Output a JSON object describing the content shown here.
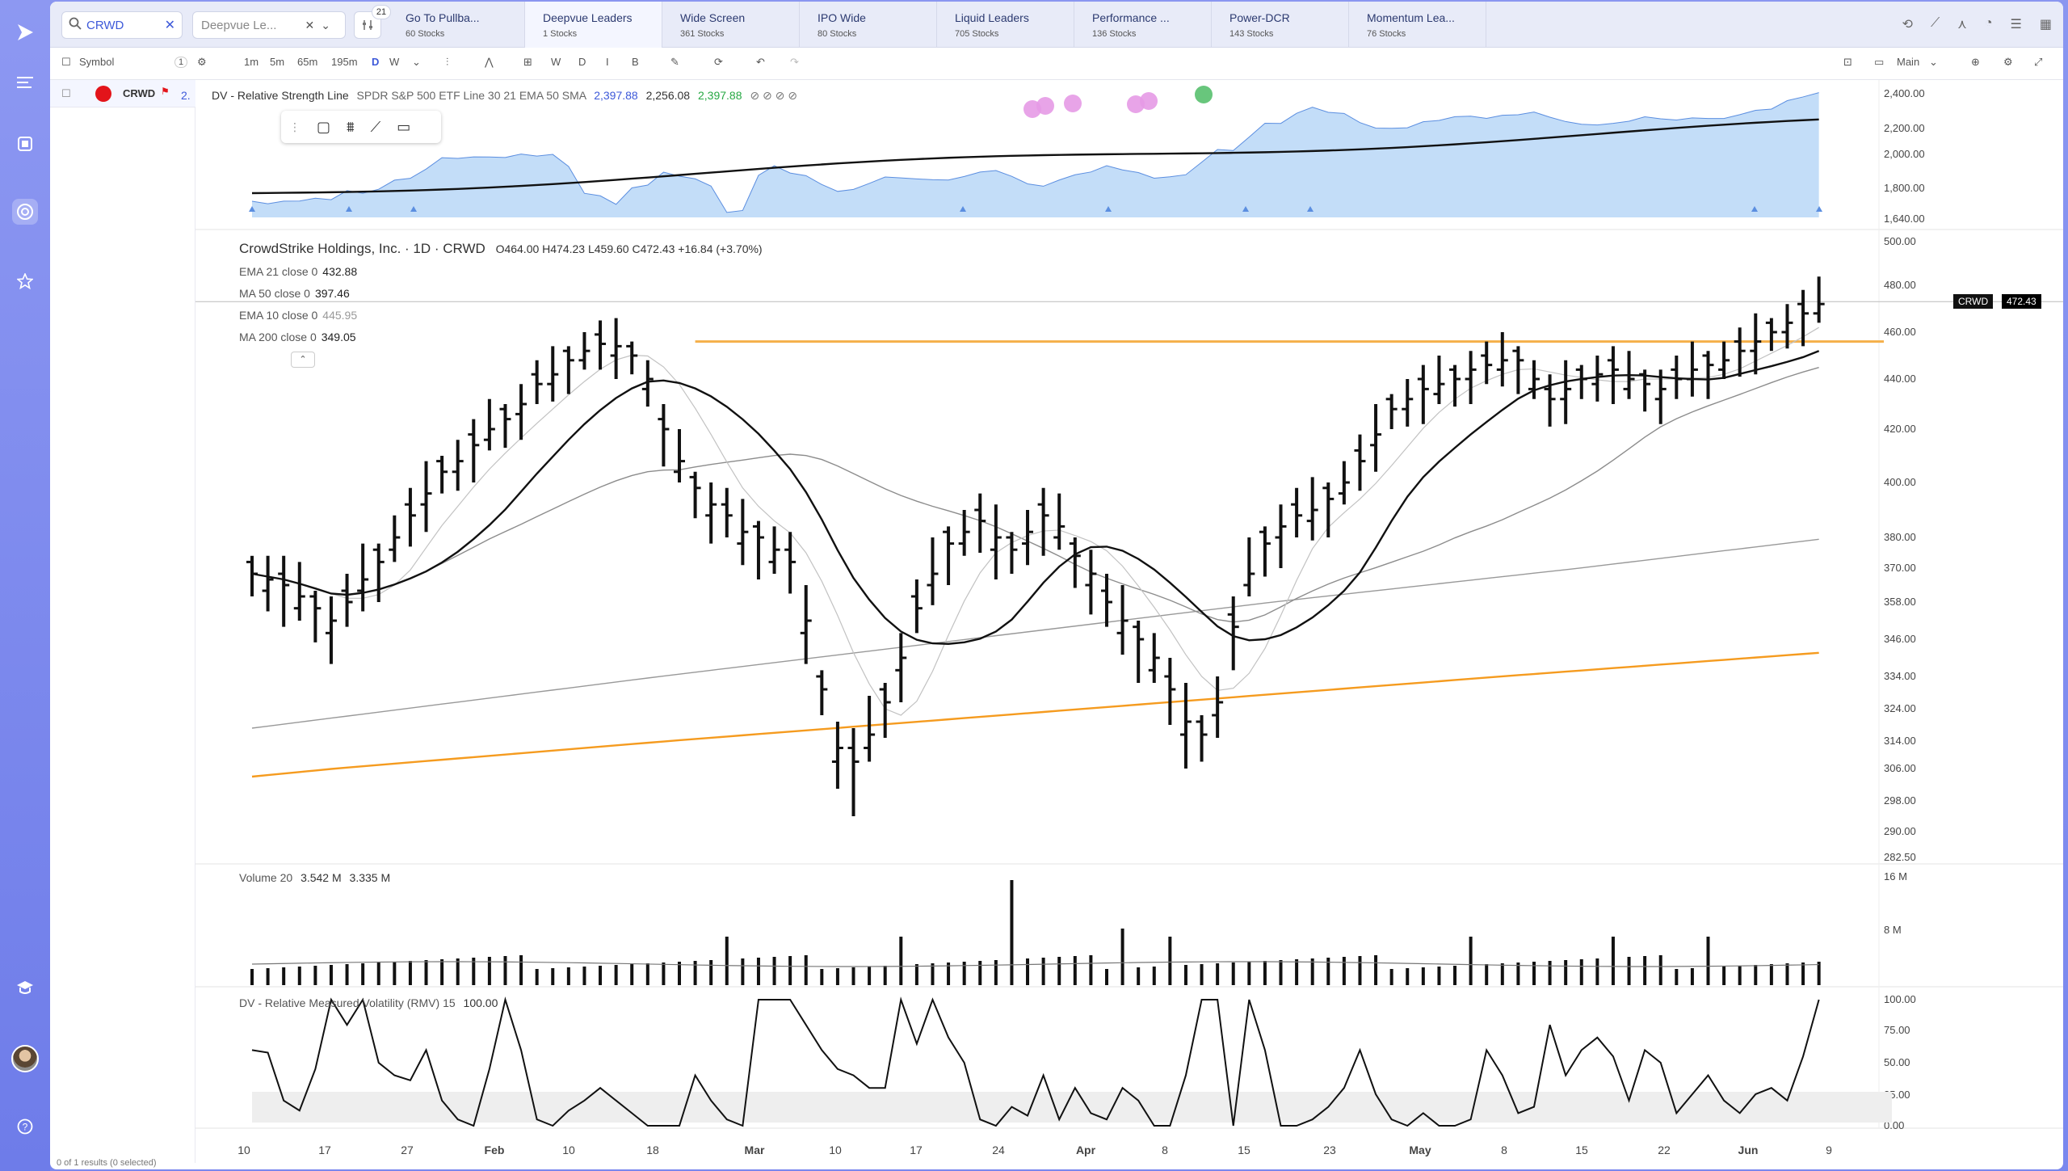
{
  "sidebar": {
    "items": [
      "logo-icon",
      "watchlist-icon",
      "screen-icon",
      "radar-icon",
      "star-icon",
      "graduation-icon",
      "help-icon"
    ]
  },
  "search": {
    "value": "CRWD",
    "clear": "✕"
  },
  "watchlist": {
    "value": "Deepvue Le..."
  },
  "filter": {
    "badge": "21"
  },
  "tabs": [
    {
      "label": "Go To Pullba...",
      "count": "60 Stocks"
    },
    {
      "label": "Deepvue Leaders",
      "count": "1 Stocks"
    },
    {
      "label": "Wide Screen",
      "count": "361 Stocks"
    },
    {
      "label": "IPO Wide",
      "count": "80 Stocks"
    },
    {
      "label": "Liquid Leaders",
      "count": "705 Stocks"
    },
    {
      "label": "Performance ...",
      "count": "136 Stocks"
    },
    {
      "label": "Power-DCR",
      "count": "143 Stocks"
    },
    {
      "label": "Momentum Lea...",
      "count": "76 Stocks"
    }
  ],
  "toolbar": {
    "symbol_label": "Symbol",
    "symbol_count": "1",
    "intervals": [
      "1m",
      "5m",
      "65m",
      "195m",
      "D",
      "W"
    ],
    "period_buttons": [
      "W",
      "D",
      "I",
      "B"
    ],
    "layout_label": "Main"
  },
  "list": {
    "ticker": "CRWD",
    "row_number": "2.",
    "footer": "0 of 1 results (0 selected)"
  },
  "rs_panel": {
    "title": "DV - Relative Strength Line",
    "params": "SPDR S&P 500 ETF Line 30 21 EMA 50 SMA",
    "v1": "2,397.88",
    "v2": "2,256.08",
    "v3": "2,397.88",
    "extra": "⊘ ⊘ ⊘ ⊘",
    "ticks": [
      "2,400.00",
      "2,200.00",
      "2,000.00",
      "1,800.00",
      "1,640.00"
    ]
  },
  "main": {
    "company": "CrowdStrike Holdings, Inc. · 1D · CRWD",
    "ohlc": "O464.00  H474.23  L459.60  C472.43  +16.84 (+3.70%)",
    "indicators": [
      {
        "label": "EMA 21 close 0",
        "value": "432.88",
        "grey": false
      },
      {
        "label": "MA 50 close 0",
        "value": "397.46",
        "grey": false
      },
      {
        "label": "EMA 10 close 0",
        "value": "445.95",
        "grey": true
      },
      {
        "label": "MA 200 close 0",
        "value": "349.05",
        "grey": false
      }
    ],
    "price_ticks": [
      "500.00",
      "480.00",
      "460.00",
      "440.00",
      "420.00",
      "400.00",
      "380.00",
      "370.00",
      "358.00",
      "346.00",
      "334.00",
      "324.00",
      "314.00",
      "306.00",
      "298.00",
      "290.00",
      "282.50"
    ],
    "price_tag": {
      "ticker": "CRWD",
      "price": "472.43"
    }
  },
  "volume": {
    "label": "Volume 20",
    "v1": "3.542 M",
    "v2": "3.335 M",
    "ticks": [
      "16 M",
      "8 M"
    ]
  },
  "rmv": {
    "label": "DV - Relative Measured Volatility (RMV) 15",
    "value": "100.00",
    "ticks": [
      "100.00",
      "75.00",
      "50.00",
      "25.00",
      "0.00"
    ]
  },
  "xaxis": [
    "10",
    "17",
    "27",
    "Feb",
    "10",
    "18",
    "Mar",
    "10",
    "17",
    "24",
    "Apr",
    "8",
    "15",
    "23",
    "May",
    "8",
    "15",
    "22",
    "Jun",
    "9"
  ],
  "colors": {
    "accent": "#3d59d9",
    "orange": "#f5a623",
    "rs_fill": "#b9d7f7",
    "price_bar": "#111111"
  }
}
